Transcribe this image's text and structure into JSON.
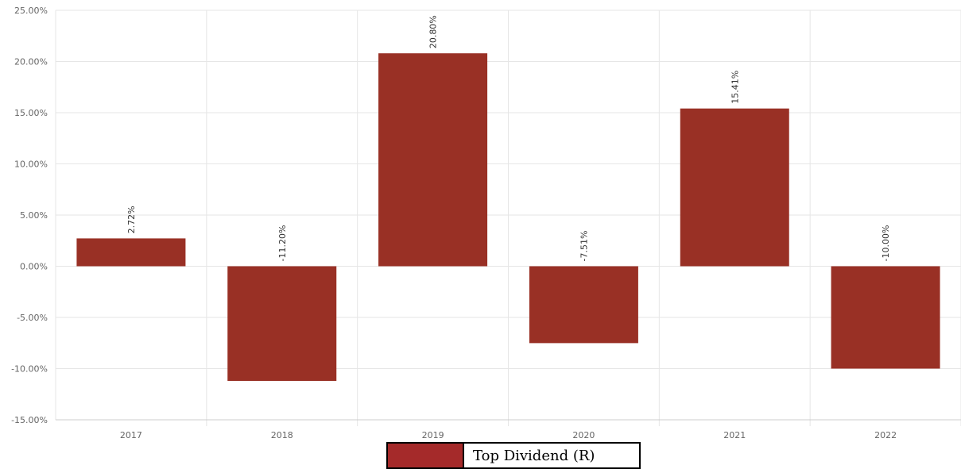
{
  "chart_data": {
    "type": "bar",
    "title": "",
    "xlabel": "",
    "ylabel": "",
    "categories": [
      "2017",
      "2018",
      "2019",
      "2020",
      "2021",
      "2022"
    ],
    "series": [
      {
        "name": "Top Dividend (R)",
        "values": [
          2.72,
          -11.2,
          20.8,
          -7.51,
          15.41,
          -10.0
        ],
        "labels": [
          "2.72%",
          "-11.20%",
          "20.80%",
          "-7.51%",
          "15.41%",
          "-10.00%"
        ],
        "color": "#993025"
      }
    ],
    "yticks": [
      25,
      20,
      15,
      10,
      5,
      0,
      -5,
      -10,
      -15
    ],
    "ytick_labels": [
      "25.00%",
      "20.00%",
      "15.00%",
      "10.00%",
      "5.00%",
      "0.00%",
      "-5.00%",
      "-10.00%",
      "-15.00%"
    ],
    "ylim": [
      -15,
      25
    ],
    "grid": true,
    "legend_position": "bottom-center",
    "legend_swatch_color": "#a52a2a"
  }
}
